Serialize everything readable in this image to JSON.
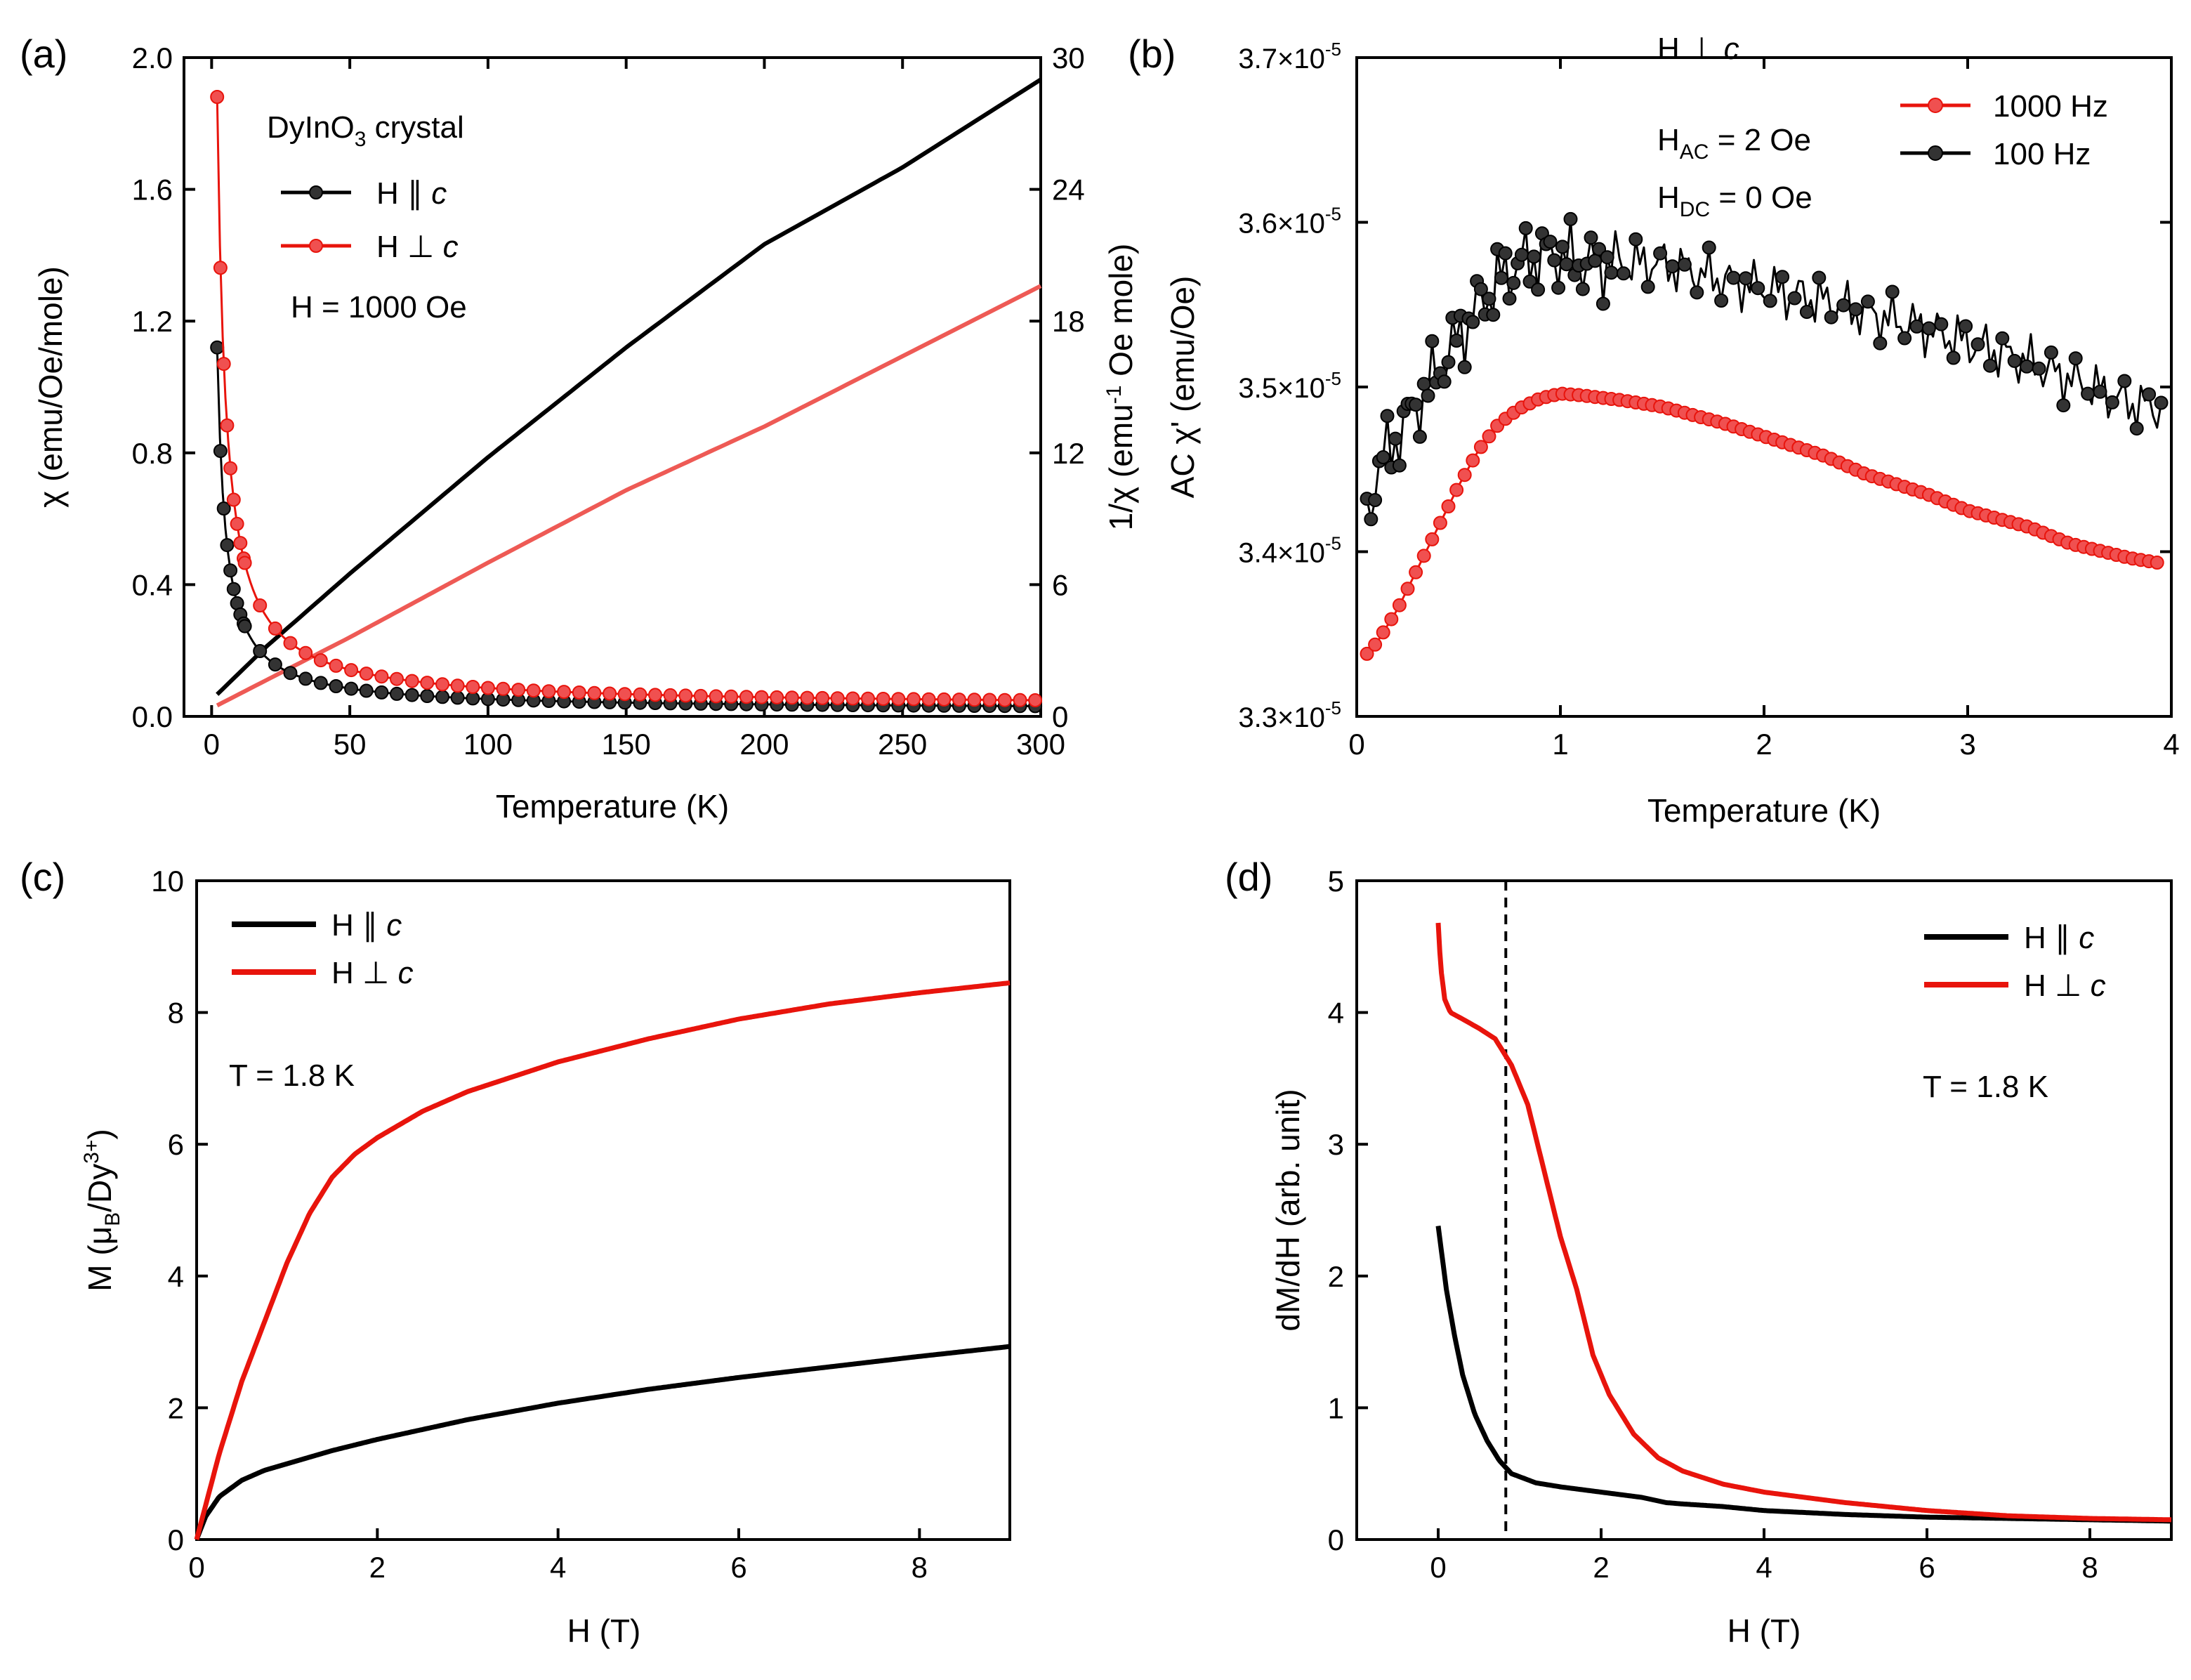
{
  "colors": {
    "black": "#000000",
    "red": "#e8140c",
    "red_line": "#ee5a55",
    "frame": "#000000"
  },
  "chart_data": [
    {
      "panel": "a",
      "label": "(a)",
      "type": "scatter",
      "xlabel": "Temperature (K)",
      "ylabel": "χ (emu/Oe/mole)",
      "y2label": "1/χ (emu⁻¹ Oe mole)",
      "xlim": [
        -10,
        300
      ],
      "ylim": [
        0,
        2.0
      ],
      "y2lim": [
        0,
        30
      ],
      "xticks": [
        "0",
        "50",
        "100",
        "150",
        "200",
        "250",
        "300"
      ],
      "yticks": [
        "0.0",
        "0.4",
        "0.8",
        "1.2",
        "1.6",
        "2.0"
      ],
      "y2ticks": [
        "0",
        "6",
        "12",
        "18",
        "24",
        "30"
      ],
      "annotations": {
        "sample": "DyInO",
        "sample_sub": "3",
        "sample_tail": " crystal",
        "field": "H = 1000 Oe"
      },
      "legend": [
        {
          "text": "H ∥ ",
          "italic": "c",
          "color": "black"
        },
        {
          "text": "H ⊥ ",
          "italic": "c",
          "color": "red"
        }
      ],
      "series": [
        {
          "name": "H ∥ c χ",
          "color": "black",
          "marker": true,
          "axis": "left",
          "C": 3.3,
          "theta": 0,
          "t0": 1,
          "chi0": 0.02
        },
        {
          "name": "H ⊥ c χ",
          "color": "red",
          "marker": true,
          "axis": "left",
          "C": 5.7,
          "theta": 0,
          "t0": 1.08,
          "chi0": 0.03
        },
        {
          "name": "H ∥ c 1/χ",
          "color": "black",
          "marker": false,
          "axis": "right",
          "x": [
            2,
            20,
            50,
            100,
            150,
            200,
            250,
            300
          ],
          "y": [
            1.0,
            3.2,
            6.5,
            11.8,
            16.8,
            21.5,
            25.0,
            29.0
          ]
        },
        {
          "name": "H ⊥ c 1/χ",
          "color": "red_line",
          "marker": false,
          "axis": "right",
          "x": [
            2,
            50,
            100,
            150,
            200,
            250,
            300
          ],
          "y": [
            0.5,
            3.6,
            7.0,
            10.3,
            13.2,
            16.4,
            19.6
          ]
        }
      ]
    },
    {
      "panel": "b",
      "label": "(b)",
      "type": "line",
      "xlabel": "Temperature (K)",
      "ylabel": "AC χ' (emu/Oe)",
      "xlim": [
        0,
        4
      ],
      "ylim": [
        3.3e-05,
        3.7e-05
      ],
      "xticks": [
        "0",
        "1",
        "2",
        "3",
        "4"
      ],
      "yticks": [
        "3.3×10",
        "3.4×10",
        "3.5×10",
        "3.6×10",
        "3.7×10"
      ],
      "ytick_exp": "-5",
      "annotations": {
        "line1": "H ⊥ ",
        "line1_it": "c",
        "line2": "H",
        "line2_sub": "AC",
        "line2_tail": " = 2 Oe",
        "line3": "H",
        "line3_sub": "DC",
        "line3_tail": " = 0 Oe"
      },
      "legend": [
        {
          "text": "1000 Hz",
          "color": "red"
        },
        {
          "text": "100 Hz",
          "color": "black"
        }
      ],
      "series": [
        {
          "name": "1000 Hz",
          "color": "red",
          "x": [
            0.05,
            0.1,
            0.2,
            0.3,
            0.4,
            0.5,
            0.6,
            0.7,
            0.8,
            0.9,
            1.0,
            1.1,
            1.3,
            1.5,
            1.8,
            2.0,
            2.3,
            2.5,
            2.8,
            3.0,
            3.3,
            3.5,
            3.8,
            3.95
          ],
          "y": [
            3.338,
            3.345,
            3.365,
            3.39,
            3.415,
            3.44,
            3.462,
            3.478,
            3.487,
            3.493,
            3.496,
            3.495,
            3.492,
            3.488,
            3.478,
            3.47,
            3.458,
            3.447,
            3.435,
            3.425,
            3.415,
            3.405,
            3.396,
            3.393
          ]
        },
        {
          "name": "100 Hz",
          "color": "black",
          "x": [
            0.05,
            0.1,
            0.2,
            0.3,
            0.4,
            0.5,
            0.6,
            0.7,
            0.8,
            0.9,
            1.0,
            1.1,
            1.3,
            1.5,
            1.8,
            2.0,
            2.3,
            2.5,
            2.8,
            3.0,
            3.3,
            3.5,
            3.8,
            3.95
          ],
          "y": [
            3.42,
            3.45,
            3.47,
            3.49,
            3.51,
            3.53,
            3.55,
            3.565,
            3.575,
            3.58,
            3.58,
            3.575,
            3.575,
            3.575,
            3.565,
            3.56,
            3.552,
            3.545,
            3.535,
            3.527,
            3.515,
            3.505,
            3.49,
            3.487
          ]
        }
      ]
    },
    {
      "panel": "c",
      "label": "(c)",
      "type": "line",
      "xlabel": "H (T)",
      "ylabel": "M (μB/Dy3+)",
      "xlim": [
        0,
        9
      ],
      "ylim": [
        0,
        10
      ],
      "xticks": [
        "0",
        "2",
        "4",
        "6",
        "8"
      ],
      "yticks": [
        "0",
        "2",
        "4",
        "6",
        "8",
        "10"
      ],
      "annotations": {
        "temp": "T = 1.8 K"
      },
      "legend": [
        {
          "text": "H ∥ ",
          "italic": "c",
          "color": "black"
        },
        {
          "text": "H ⊥ ",
          "italic": "c",
          "color": "red"
        }
      ],
      "series": [
        {
          "name": "H ∥ c",
          "color": "black",
          "x": [
            0,
            0.1,
            0.25,
            0.5,
            0.75,
            1,
            1.5,
            2,
            3,
            4,
            5,
            6,
            7,
            8,
            9
          ],
          "y": [
            0,
            0.35,
            0.65,
            0.9,
            1.05,
            1.15,
            1.35,
            1.52,
            1.82,
            2.07,
            2.28,
            2.46,
            2.62,
            2.78,
            2.93
          ]
        },
        {
          "name": "H ⊥ c",
          "color": "red",
          "x": [
            0,
            0.25,
            0.5,
            0.75,
            1,
            1.25,
            1.5,
            1.75,
            2,
            2.5,
            3,
            4,
            5,
            6,
            7,
            8,
            9
          ],
          "y": [
            0,
            1.3,
            2.4,
            3.3,
            4.2,
            4.95,
            5.5,
            5.85,
            6.1,
            6.5,
            6.8,
            7.25,
            7.6,
            7.9,
            8.13,
            8.3,
            8.45
          ]
        }
      ]
    },
    {
      "panel": "d",
      "label": "(d)",
      "type": "line",
      "xlabel": "H (T)",
      "ylabel": "dM/dH (arb. unit)",
      "xlim": [
        -1,
        9
      ],
      "ylim": [
        0,
        5
      ],
      "xticks": [
        "0",
        "2",
        "4",
        "6",
        "8"
      ],
      "yticks": [
        "0",
        "1",
        "2",
        "3",
        "4",
        "5"
      ],
      "vline_x": 0.83,
      "annotations": {
        "temp": "T = 1.8 K"
      },
      "legend": [
        {
          "text": "H ∥ ",
          "italic": "c",
          "color": "black"
        },
        {
          "text": "H ⊥ ",
          "italic": "c",
          "color": "red"
        }
      ],
      "series": [
        {
          "name": "H ∥ c",
          "color": "black",
          "x": [
            0,
            0.1,
            0.2,
            0.3,
            0.45,
            0.6,
            0.75,
            0.9,
            1.2,
            1.5,
            2,
            2.5,
            2.8,
            3,
            3.5,
            4,
            5,
            6,
            7,
            8,
            9
          ],
          "y": [
            2.38,
            1.9,
            1.55,
            1.25,
            0.95,
            0.75,
            0.6,
            0.5,
            0.43,
            0.4,
            0.36,
            0.32,
            0.28,
            0.27,
            0.25,
            0.22,
            0.19,
            0.17,
            0.16,
            0.15,
            0.14
          ]
        },
        {
          "name": "H ⊥ c",
          "color": "red",
          "x": [
            0,
            0.03,
            0.08,
            0.15,
            0.3,
            0.5,
            0.7,
            0.9,
            1.1,
            1.3,
            1.5,
            1.7,
            1.9,
            2.1,
            2.4,
            2.7,
            3.0,
            3.5,
            4,
            5,
            6,
            7,
            8,
            9
          ],
          "y": [
            4.68,
            4.35,
            4.1,
            4.0,
            3.95,
            3.88,
            3.8,
            3.6,
            3.3,
            2.8,
            2.3,
            1.9,
            1.4,
            1.1,
            0.8,
            0.62,
            0.52,
            0.42,
            0.36,
            0.28,
            0.22,
            0.18,
            0.16,
            0.15
          ]
        }
      ]
    }
  ]
}
